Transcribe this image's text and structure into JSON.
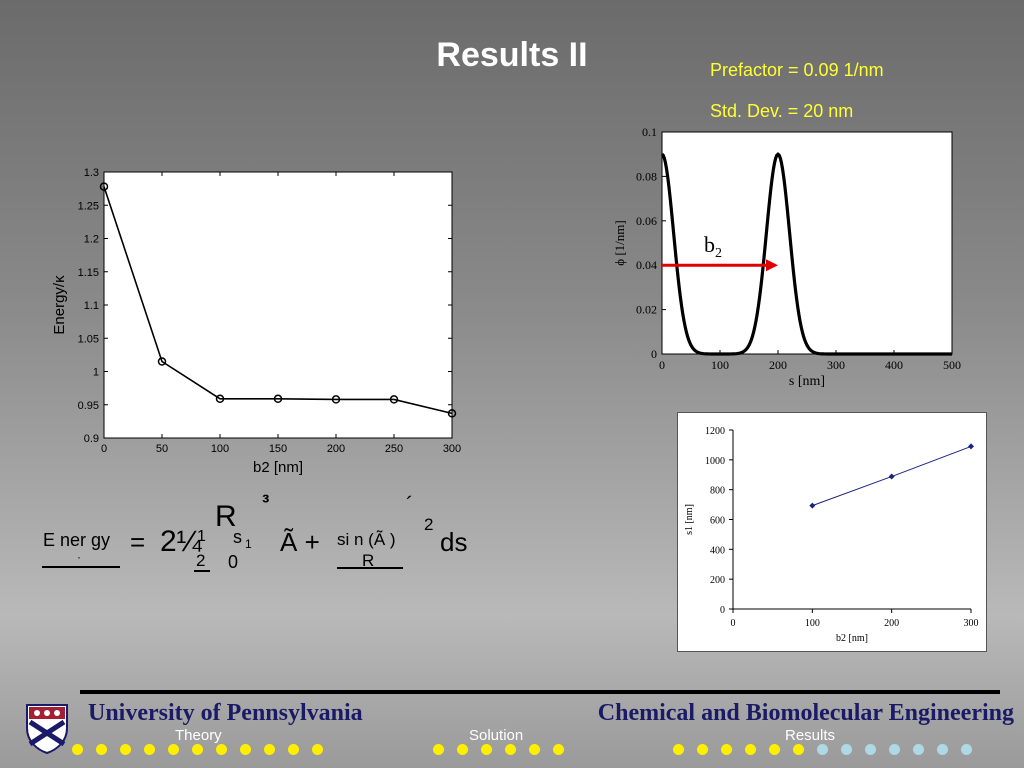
{
  "title": "Results II",
  "info": {
    "prefactor": "Prefactor = 0.09 1/nm",
    "std_dev": "Std. Dev. = 20 nm"
  },
  "chart_data": [
    {
      "type": "line",
      "xlabel": "b2 [nm]",
      "ylabel": "Energy/κ",
      "x": [
        0,
        50,
        100,
        150,
        200,
        250,
        300
      ],
      "y": [
        1.278,
        1.015,
        0.959,
        0.959,
        0.958,
        0.958,
        0.937
      ],
      "xlim": [
        0,
        300
      ],
      "ylim": [
        0.9,
        1.3
      ],
      "xticks": [
        "0",
        "50",
        "100",
        "150",
        "200",
        "250",
        "300"
      ],
      "yticks": [
        "0.9",
        "0.95",
        "1",
        "1.05",
        "1.1",
        "1.15",
        "1.2",
        "1.25",
        "1.3"
      ],
      "markers": "circle",
      "grid": false
    },
    {
      "type": "line",
      "xlabel": "s [nm]",
      "ylabel": "ϕ [1/nm]",
      "peaks": [
        {
          "center": 0,
          "height": 0.09,
          "sd": 20
        },
        {
          "center": 200,
          "height": 0.09,
          "sd": 20
        }
      ],
      "xlim": [
        0,
        500
      ],
      "ylim": [
        0,
        0.1
      ],
      "xticks": [
        "0",
        "100",
        "200",
        "300",
        "400",
        "500"
      ],
      "yticks": [
        "0",
        "0.02",
        "0.04",
        "0.06",
        "0.08",
        "0.1"
      ],
      "annotation": {
        "label": "b",
        "subscript": "2",
        "arrow_from": [
          0,
          0.04
        ],
        "arrow_to": [
          200,
          0.04
        ],
        "color": "#e00000"
      },
      "grid": false
    },
    {
      "type": "line",
      "xlabel": "b2 [nm]",
      "ylabel": "s1 [nm]",
      "x": [
        100,
        200,
        300
      ],
      "y": [
        693,
        888,
        1090
      ],
      "xlim": [
        0,
        300
      ],
      "ylim": [
        0,
        1200
      ],
      "xticks": [
        "0",
        "100",
        "200",
        "300"
      ],
      "yticks": [
        "0",
        "200",
        "400",
        "600",
        "800",
        "1000",
        "1200"
      ],
      "color": "#1a237e",
      "markers": "diamond",
      "grid": false
    }
  ],
  "equation": {
    "lhs_num": "E ner gy",
    "lhs_den": "·",
    "equals": "=",
    "coef": "2¼",
    "coef_sup": "1",
    "coef_sub": "2",
    "integral": "R",
    "integral_upper": "³",
    "upper_limit": "s",
    "upper_limit_sub": "1",
    "lower_limit": "0",
    "term": "Ã +",
    "frac_num": "si n (Ã )",
    "frac_den": "R",
    "prime": "´",
    "power": "2",
    "ds": "ds"
  },
  "footer": {
    "university": "University of Pennsylvania",
    "department": "Chemical and Biomolecular Engineering",
    "nav": [
      "Theory",
      "Solution",
      "Results"
    ]
  },
  "colors": {
    "title": "#ffffff",
    "info": "#ffff33",
    "footer_text": "#1a1a66",
    "dot_yellow": "#ffee00",
    "dot_blue": "#add8e6",
    "arrow": "#e00000"
  }
}
